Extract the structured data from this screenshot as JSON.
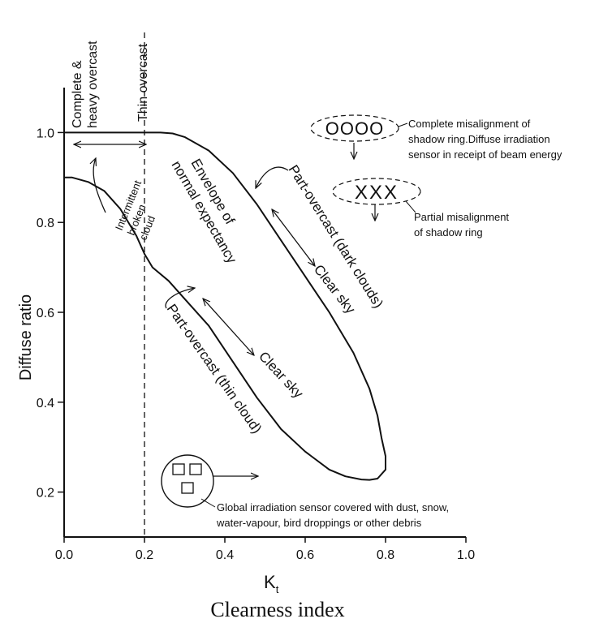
{
  "chart_data": {
    "type": "line",
    "title": "",
    "xlabel": "K",
    "xlabel_subscript": "t",
    "xlabel_caption": "Clearness index",
    "ylabel": "Diffuse ratio",
    "xlim": [
      0.0,
      1.0
    ],
    "ylim": [
      0.1,
      1.1
    ],
    "x_ticks": [
      0.0,
      0.2,
      0.4,
      0.6,
      0.8,
      1.0
    ],
    "x_tick_labels": [
      "0.0",
      "0.2",
      "0.4",
      "0.6",
      "0.8",
      "1.0"
    ],
    "y_ticks": [
      0.2,
      0.4,
      0.6,
      0.8,
      1.0
    ],
    "y_tick_labels": [
      "0.2",
      "0.4",
      "0.6",
      "0.8",
      "1.0"
    ],
    "grid": false,
    "legend": "none",
    "series": [
      {
        "x": [
          0.0,
          0.02,
          0.06,
          0.1,
          0.14,
          0.18,
          0.2,
          0.22,
          0.26,
          0.3,
          0.36,
          0.42,
          0.48,
          0.54,
          0.6,
          0.66,
          0.7,
          0.74,
          0.76,
          0.78,
          0.8,
          0.8,
          0.79,
          0.78,
          0.76,
          0.72,
          0.66,
          0.6,
          0.54,
          0.48,
          0.42,
          0.36,
          0.3,
          0.27,
          0.24,
          0.22,
          0.2,
          0.18,
          0.16,
          0.12,
          0.08,
          0.04,
          0.0
        ],
        "y": [
          0.9,
          0.9,
          0.89,
          0.87,
          0.83,
          0.77,
          0.73,
          0.7,
          0.67,
          0.63,
          0.57,
          0.49,
          0.41,
          0.34,
          0.29,
          0.25,
          0.235,
          0.228,
          0.227,
          0.23,
          0.25,
          0.28,
          0.32,
          0.37,
          0.43,
          0.51,
          0.6,
          0.68,
          0.76,
          0.84,
          0.91,
          0.96,
          0.99,
          0.998,
          1.0,
          1.0,
          1.0,
          1.0,
          1.0,
          1.0,
          1.0,
          1.0,
          1.0
        ]
      }
    ],
    "vertical_line": {
      "x": 0.2,
      "style": "dashed"
    },
    "overcast_labels": [
      "Complete &",
      "heavy overcast",
      "Thin overcast"
    ],
    "annotations": {
      "intermittent": [
        "Intermittent",
        "broken",
        "cloud"
      ],
      "envelope": [
        "Envelope of",
        "normal expectancy"
      ],
      "part_overcast_dark": "Part-overcast (dark clouds)",
      "part_overcast_thin": "Part-overcast (thin cloud)",
      "clear_sky_upper": "Clear sky",
      "clear_sky_lower": "Clear sky",
      "misalignment_complete": [
        "Complete misalignment of",
        "shadow ring.Diffuse irradiation",
        "sensor in receipt of beam energy"
      ],
      "misalignment_partial": [
        "Partial misalignment",
        "of shadow ring"
      ],
      "dust": [
        "Global irradiation sensor covered with dust, snow,",
        "water-vapour, bird droppings or other debris"
      ],
      "circles_symbol": "OOOO",
      "crosses_symbol": "XXX"
    }
  }
}
